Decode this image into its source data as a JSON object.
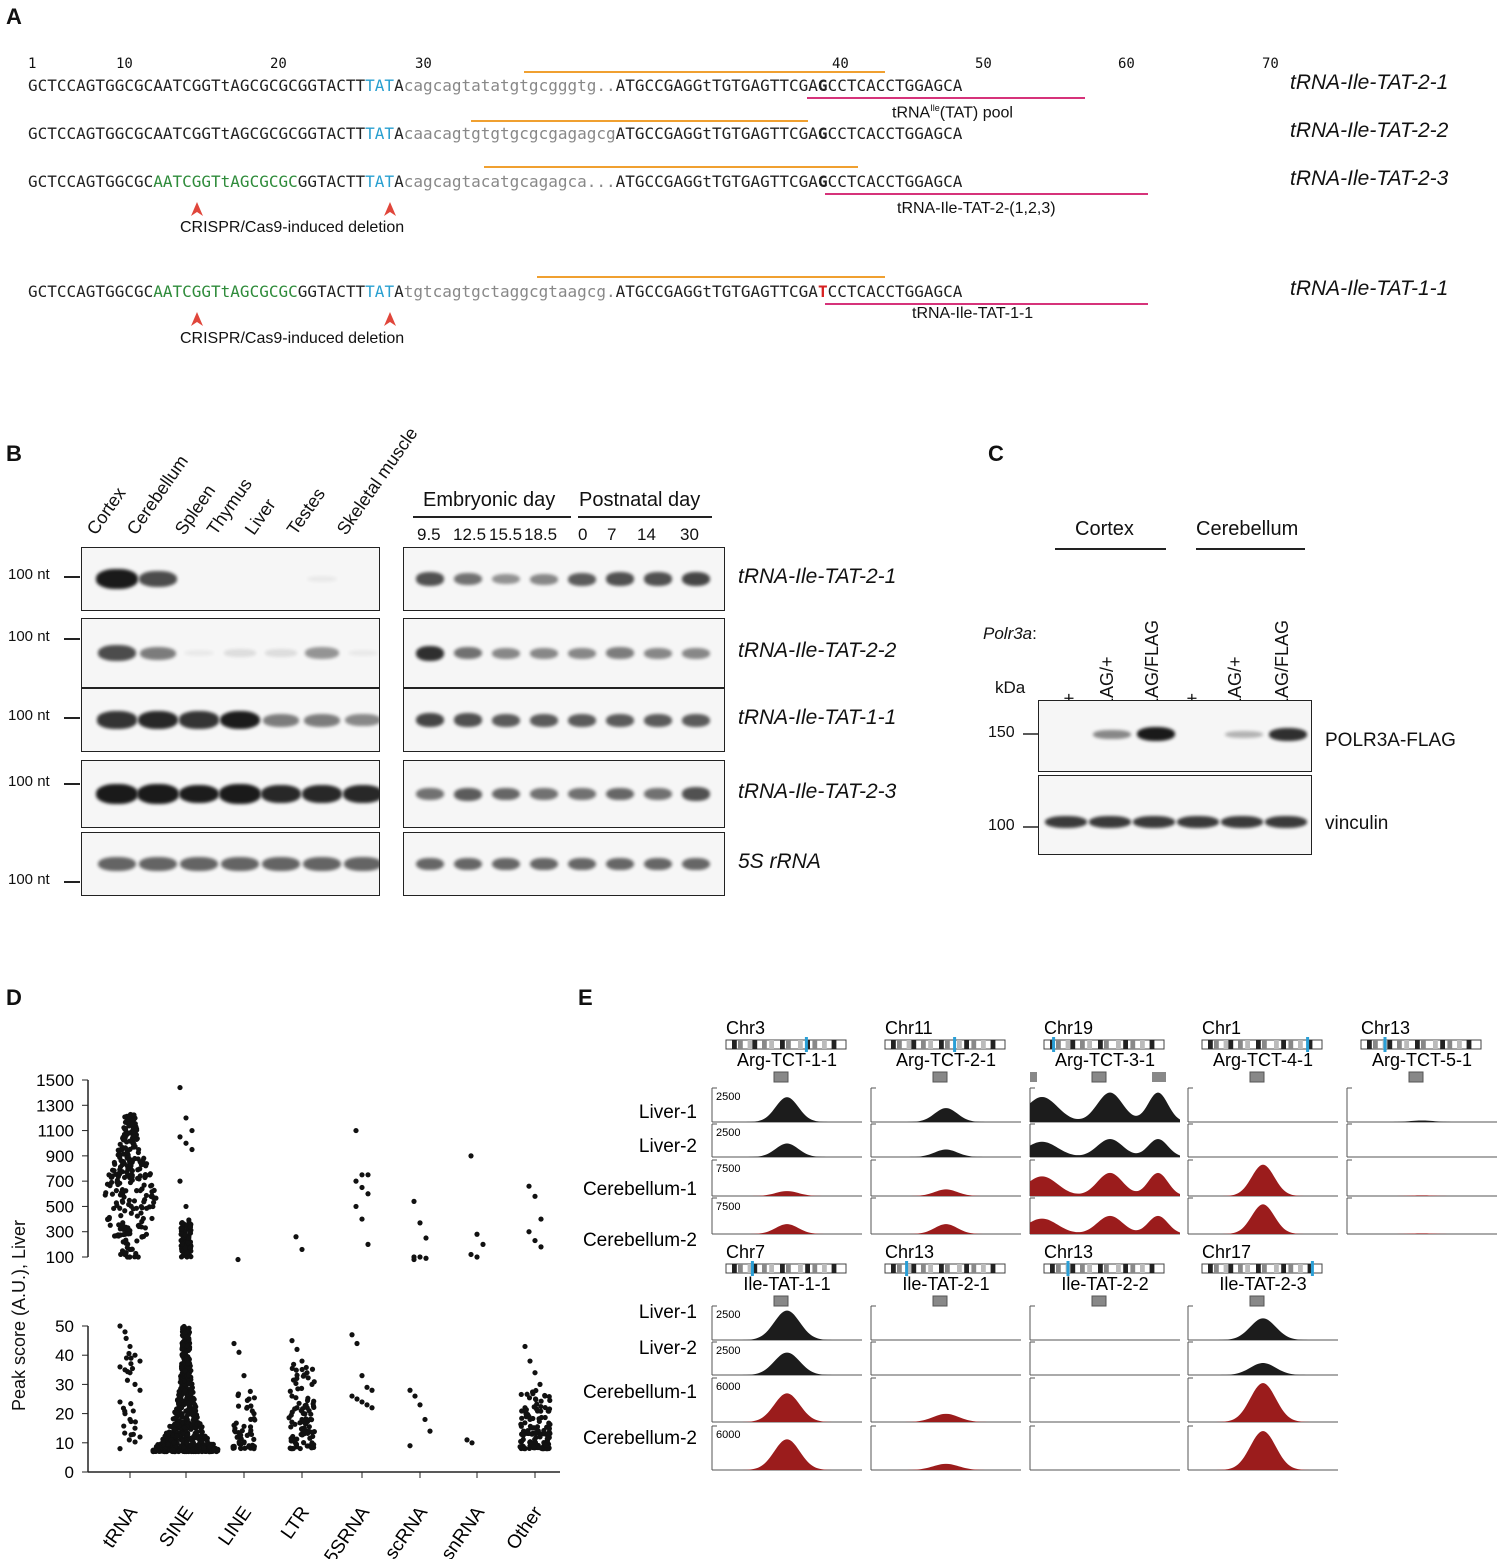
{
  "panels": {
    "a": "A",
    "b": "B",
    "c": "C",
    "d": "D",
    "e": "E"
  },
  "panelA": {
    "ticks": [
      "1",
      "10",
      "20",
      "30",
      "40",
      "50",
      "60",
      "70"
    ],
    "rows": [
      {
        "name": "tRNA-Ile-TAT-2-1",
        "segs": [
          [
            "GCTCCAGTGGCGCAATCGGTtAGCGCGCGGTACTT",
            "#222"
          ],
          [
            "TAT",
            "#2aa0d0"
          ],
          [
            "A",
            "#222"
          ],
          [
            "cagcagtatatgtgcgggtg..",
            "#888"
          ],
          [
            "ATGCCGAGGtTGTGAGTTCGA",
            "#222"
          ],
          [
            "G",
            "#222"
          ],
          [
            "CCTCACCTGGAGCA",
            "#222"
          ]
        ],
        "note": "tRNA",
        "note_sup": "Ile",
        "note_rest": "(TAT) pool"
      },
      {
        "name": "tRNA-Ile-TAT-2-2",
        "segs": [
          [
            "GCTCCAGTGGCGCAATCGGTtAGCGCGCGGTACTT",
            "#222"
          ],
          [
            "TAT",
            "#2aa0d0"
          ],
          [
            "A",
            "#222"
          ],
          [
            "caacagtgtgtgcgcgagagcg",
            "#888"
          ],
          [
            "ATGCCGAGGtTGTGAGTTCGA",
            "#222"
          ],
          [
            "G",
            "#222"
          ],
          [
            "CCTCACCTGGAGCA",
            "#222"
          ]
        ]
      },
      {
        "name": "tRNA-Ile-TAT-2-3",
        "segs": [
          [
            "GCTCCAGTGGCGC",
            "#222"
          ],
          [
            "AATCGGTtAGCGCGC",
            "#2e8b3a"
          ],
          [
            "GGTACTT",
            "#222"
          ],
          [
            "TAT",
            "#2aa0d0"
          ],
          [
            "A",
            "#222"
          ],
          [
            "cagcagtacatgcagagca...",
            "#888"
          ],
          [
            "ATGCCGAGGtTGTGAGTTCGA",
            "#222"
          ],
          [
            "G",
            "#222"
          ],
          [
            "CCTCACCTGGAGCA",
            "#222"
          ]
        ],
        "note": "tRNA-Ile-TAT-2-(1,2,3)"
      },
      {
        "name": "tRNA-Ile-TAT-1-1",
        "segs": [
          [
            "GCTCCAGTGGCGC",
            "#222"
          ],
          [
            "AATCGGTtAGCGCGC",
            "#2e8b3a"
          ],
          [
            "GGTACTT",
            "#222"
          ],
          [
            "TAT",
            "#2aa0d0"
          ],
          [
            "A",
            "#222"
          ],
          [
            "tgtcagtgctaggcgtaagcg.",
            "#888"
          ],
          [
            "ATGCCGAGGtTGTGAGTTCGA",
            "#222"
          ],
          [
            "T",
            "#d62020"
          ],
          [
            "CCTCACCTGGAGCA",
            "#222"
          ]
        ],
        "note": "tRNA-Ile-TAT-1-1"
      }
    ],
    "crispr_label": "CRISPR/Cas9-induced deletion"
  },
  "panelB": {
    "tissues": [
      "Cortex",
      "Cerebellum",
      "Spleen",
      "Thymus",
      "Liver",
      "Testes",
      "Skeletal muscle"
    ],
    "embryonic_label": "Embryonic day",
    "postnatal_label": "Postnatal day",
    "days": [
      "9.5",
      "12.5",
      "15.5",
      "18.5",
      "0",
      "7",
      "14",
      "30"
    ],
    "nt": "100 nt",
    "rows": [
      "tRNA-Ile-TAT-2-1",
      "tRNA-Ile-TAT-2-2",
      "tRNA-Ile-TAT-1-1",
      "tRNA-Ile-TAT-2-3",
      "5S rRNA"
    ],
    "tissue_intensity": [
      [
        1.0,
        0.7,
        0,
        0,
        0,
        0.05,
        0
      ],
      [
        0.7,
        0.5,
        0.05,
        0.1,
        0.1,
        0.4,
        0.05
      ],
      [
        0.8,
        0.85,
        0.8,
        0.9,
        0.5,
        0.5,
        0.45
      ],
      [
        1.0,
        1.0,
        0.9,
        1.0,
        0.85,
        0.85,
        0.85
      ],
      [
        0.6,
        0.6,
        0.6,
        0.6,
        0.6,
        0.6,
        0.6
      ]
    ],
    "dev_intensity": [
      [
        0.75,
        0.6,
        0.45,
        0.5,
        0.7,
        0.75,
        0.75,
        0.8
      ],
      [
        0.9,
        0.6,
        0.5,
        0.5,
        0.5,
        0.55,
        0.5,
        0.5
      ],
      [
        0.8,
        0.75,
        0.7,
        0.7,
        0.7,
        0.7,
        0.7,
        0.7
      ],
      [
        0.6,
        0.7,
        0.65,
        0.6,
        0.6,
        0.65,
        0.6,
        0.75
      ],
      [
        0.65,
        0.65,
        0.65,
        0.65,
        0.65,
        0.65,
        0.65,
        0.65
      ]
    ]
  },
  "panelC": {
    "cortex": "Cortex",
    "cerebellum": "Cerebellum",
    "gene": "Polr3a",
    "gene_colon": ":",
    "genotypes": [
      "+/+",
      "FLAG/+",
      "FLAG/FLAG",
      "+/+",
      "FLAG/+",
      "FLAG/FLAG"
    ],
    "kda": "kDa",
    "markers": [
      "150",
      "100"
    ],
    "bands": [
      "POLR3A-FLAG",
      "vinculin"
    ],
    "flag_intensity": [
      0,
      0.5,
      1.0,
      0,
      0.3,
      0.9
    ]
  },
  "panelD": {
    "ylabel": "Peak score (A.U.), Liver",
    "categories": [
      "tRNA",
      "SINE",
      "LINE",
      "LTR",
      "5SRNA",
      "scRNA",
      "snRNA",
      "Other"
    ],
    "upper_ticks": [
      "1500",
      "1300",
      "1100",
      "900",
      "700",
      "500",
      "300",
      "100"
    ],
    "lower_ticks": [
      "50",
      "40",
      "30",
      "20",
      "10",
      "0"
    ],
    "chart_data": {
      "type": "scatter",
      "categories": [
        "tRNA",
        "SINE",
        "LINE",
        "LTR",
        "5SRNA",
        "scRNA",
        "snRNA",
        "Other"
      ],
      "upper_ylim": [
        100,
        1500
      ],
      "lower_ylim": [
        0,
        50
      ],
      "upper_points": {
        "tRNA": "dense 60-1250",
        "SINE": [
          1440,
          1200,
          1100,
          1050,
          1000,
          950,
          700,
          500
        ],
        "LINE": [
          80
        ],
        "LTR": [
          260,
          160
        ],
        "5SRNA": [
          1100,
          750,
          750,
          700,
          650,
          600,
          500,
          400,
          200
        ],
        "scRNA": [
          540,
          370,
          250,
          100,
          100,
          90,
          80
        ],
        "snRNA": [
          900,
          280,
          200,
          120,
          100
        ],
        "Other": [
          660,
          580,
          400,
          300,
          230,
          180
        ]
      },
      "lower_points": {
        "tRNA": [
          50,
          48,
          43,
          40,
          38,
          36,
          35,
          34,
          30,
          28,
          24,
          20,
          18,
          15,
          12,
          8
        ],
        "SINE": "dense 7-50",
        "LINE": [
          44,
          41,
          33,
          25,
          20,
          16,
          12,
          10,
          9,
          8
        ],
        "LTR": [
          45,
          42,
          38,
          34,
          30,
          26,
          22,
          18,
          14,
          10,
          8
        ],
        "5SRNA": [
          47,
          44,
          33,
          29,
          28,
          26,
          25,
          24,
          23,
          22
        ],
        "scRNA": [
          28,
          26,
          23,
          18,
          14,
          9
        ],
        "snRNA": [
          11,
          10
        ],
        "Other": [
          43,
          38,
          34,
          30,
          26,
          22,
          18,
          15,
          12,
          10,
          8
        ]
      }
    }
  },
  "panelE": {
    "top": [
      {
        "chr": "Chr3",
        "gene": "Arg-TCT-1-1"
      },
      {
        "chr": "Chr11",
        "gene": "Arg-TCT-2-1"
      },
      {
        "chr": "Chr19",
        "gene": "Arg-TCT-3-1"
      },
      {
        "chr": "Chr1",
        "gene": "Arg-TCT-4-1"
      },
      {
        "chr": "Chr13",
        "gene": "Arg-TCT-5-1"
      }
    ],
    "bottom": [
      {
        "chr": "Chr7",
        "gene": "Ile-TAT-1-1"
      },
      {
        "chr": "Chr13",
        "gene": "Ile-TAT-2-1"
      },
      {
        "chr": "Chr13",
        "gene": "Ile-TAT-2-2"
      },
      {
        "chr": "Chr17",
        "gene": "Ile-TAT-2-3"
      }
    ],
    "samples": [
      "Liver-1",
      "Liver-2",
      "Cerebellum-1",
      "Cerebellum-2"
    ],
    "top_scales": [
      "2500",
      "2500",
      "7500",
      "7500"
    ],
    "bottom_scales": [
      "2500",
      "2500",
      "6000",
      "6000"
    ],
    "liver_color": "#1c1c1c",
    "cb_color": "#9b1c1c",
    "top_heights": [
      [
        0.8,
        0.45,
        0.15,
        0.3
      ],
      [
        0.45,
        0.25,
        0.2,
        0.3
      ],
      [
        0.95,
        0.6,
        0.7,
        0.55
      ],
      [
        0,
        0,
        0.95,
        0.9
      ],
      [
        0.05,
        0,
        0.02,
        0.02
      ]
    ],
    "bottom_heights": [
      [
        0.95,
        0.75,
        0.7,
        0.75
      ],
      [
        0,
        0,
        0.2,
        0.15
      ],
      [
        0,
        0,
        0,
        0
      ],
      [
        0.7,
        0.4,
        0.95,
        0.95
      ]
    ]
  }
}
